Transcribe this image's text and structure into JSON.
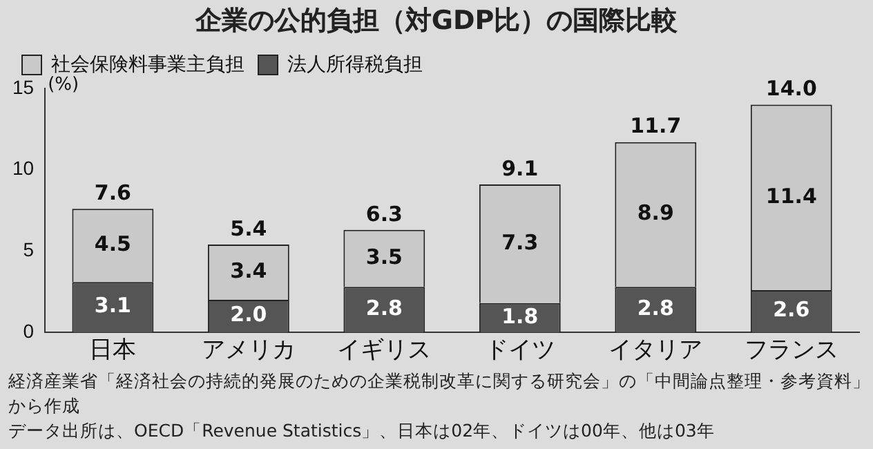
{
  "chart_data": {
    "type": "bar",
    "title": "企業の公的負担（対GDP比）の国際比較",
    "ylabel": "(%)",
    "categories": [
      "日本",
      "アメリカ",
      "イギリス",
      "ドイツ",
      "イタリア",
      "フランス"
    ],
    "stacked": true,
    "series": [
      {
        "name": "法人所得税負担",
        "color": "#555555",
        "values": [
          3.1,
          2.0,
          2.8,
          1.8,
          2.8,
          2.6
        ],
        "value_labels": [
          "3.1",
          "2.0",
          "2.8",
          "1.8",
          "2.8",
          "2.6"
        ]
      },
      {
        "name": "社会保険料事業主負担",
        "color": "#c9c9c9",
        "values": [
          4.5,
          3.4,
          3.5,
          7.3,
          8.9,
          11.4
        ],
        "value_labels": [
          "4.5",
          "3.4",
          "3.5",
          "7.3",
          "8.9",
          "11.4"
        ]
      }
    ],
    "totals": [
      "7.6",
      "5.4",
      "6.3",
      "9.1",
      "11.7",
      "14.0"
    ],
    "ylim": [
      0,
      15
    ],
    "yticks": [
      0,
      5,
      10,
      15
    ],
    "grid": false,
    "legend": "top left",
    "annotations": [
      "経済産業省「経済社会の持続的発展のための企業税制改革に関する研究会」の「中間論点整理・参考資料」から作成",
      "データ出所は、OECD「Revenue Statistics」、日本は02年、ドイツは00年、他は03年"
    ]
  }
}
